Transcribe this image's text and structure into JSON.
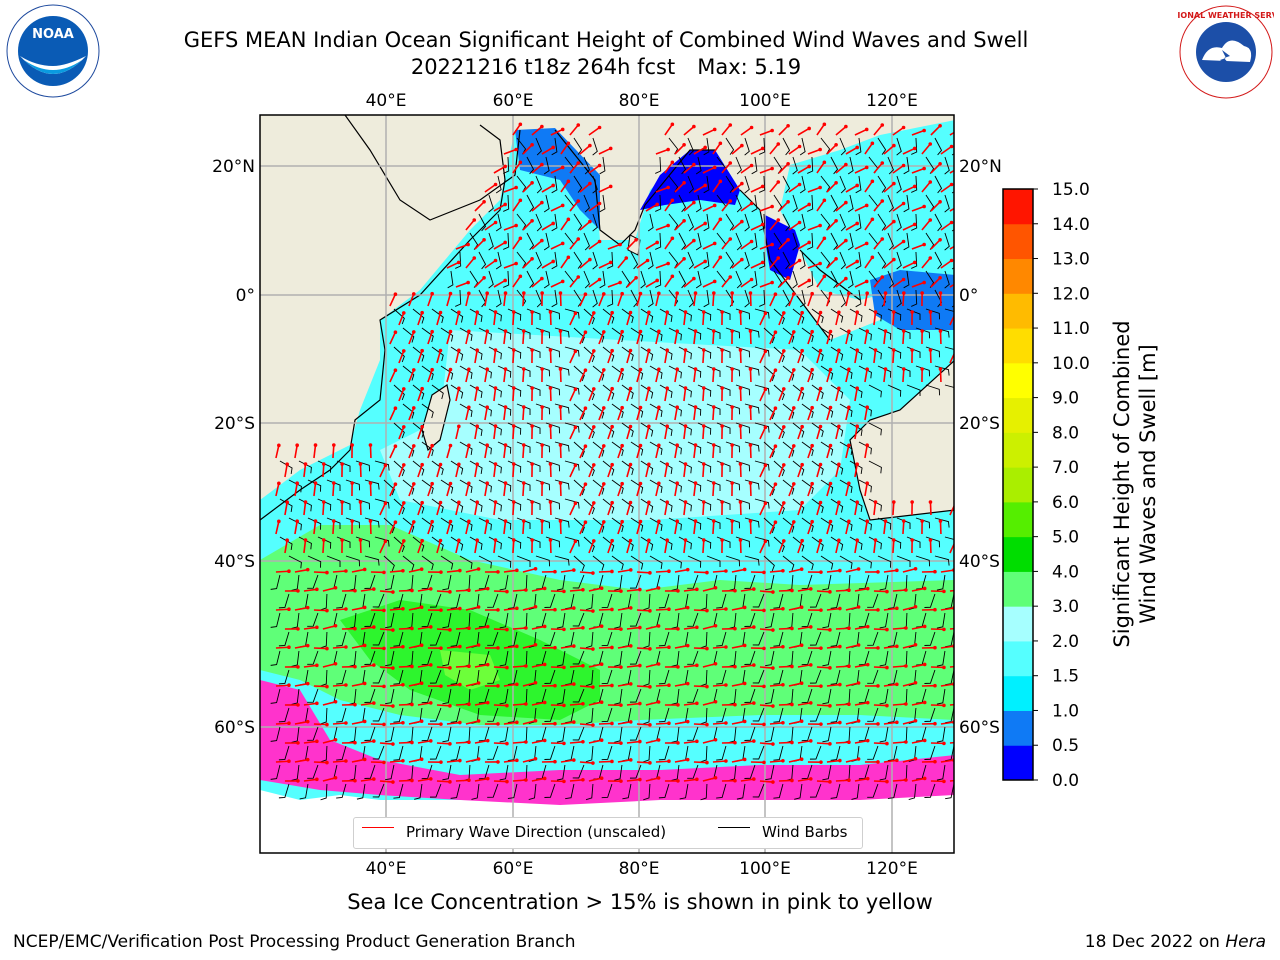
{
  "title_line1": "GEFS MEAN Indian Ocean Significant Height of Combined Wind Waves and Swell",
  "title_line2_run": "20221216 t18z 264h fcst",
  "title_line2_max": "Max: 5.19",
  "logos": {
    "left": {
      "name": "noaa-logo",
      "text": "NOAA",
      "ring_text": "NATIONAL OCEANIC AND ATMOSPHERIC ADMINISTRATION · U.S. DEPARTMENT OF COMMERCE"
    },
    "right": {
      "name": "nws-logo",
      "ring_text": "NATIONAL WEATHER SERVICE"
    }
  },
  "map": {
    "lon_ticks": [
      "40°E",
      "60°E",
      "80°E",
      "100°E",
      "120°E"
    ],
    "lat_ticks": [
      "20°N",
      "0°",
      "20°S",
      "40°S",
      "60°S"
    ],
    "colors": {
      "land": "#eeecdc",
      "ocean_low": "#55ffff",
      "ocean_mid": "#a6ffff",
      "green_light": "#5fff78",
      "green_mid": "#2df52d",
      "blue_deep": "#0000ff",
      "blue_mid": "#0f7af5",
      "ice_pink": "#ff33cc",
      "ice_orange": "#ffaa55",
      "wave_arrow": "#ff0000",
      "wind_barb": "#000000"
    }
  },
  "legend": {
    "wave_label": "Primary Wave Direction (unscaled)",
    "wind_label": "Wind Barbs"
  },
  "colorbar": {
    "title_line1": "Significant Height of Combined",
    "title_line2": "Wind Waves and Swell [m]",
    "ticks": [
      "0.0",
      "0.5",
      "1.0",
      "1.5",
      "2.0",
      "3.0",
      "4.0",
      "5.0",
      "6.0",
      "7.0",
      "8.0",
      "9.0",
      "10.0",
      "11.0",
      "12.0",
      "13.0",
      "14.0",
      "15.0"
    ],
    "colors": [
      "#0000ff",
      "#0f7af5",
      "#00f0ff",
      "#55ffff",
      "#a6ffff",
      "#5fff78",
      "#00dd00",
      "#55ee00",
      "#aaee00",
      "#ccf000",
      "#e6f000",
      "#ffff00",
      "#ffdd00",
      "#ffbb00",
      "#ff8800",
      "#ff5500",
      "#ff1500"
    ]
  },
  "footnote": "Sea Ice Concentration > 15% is shown in pink to yellow",
  "credit": "NCEP/EMC/Verification Post Processing Product Generation Branch",
  "date_stamp": "18 Dec 2022 on",
  "machine": "Hera"
}
